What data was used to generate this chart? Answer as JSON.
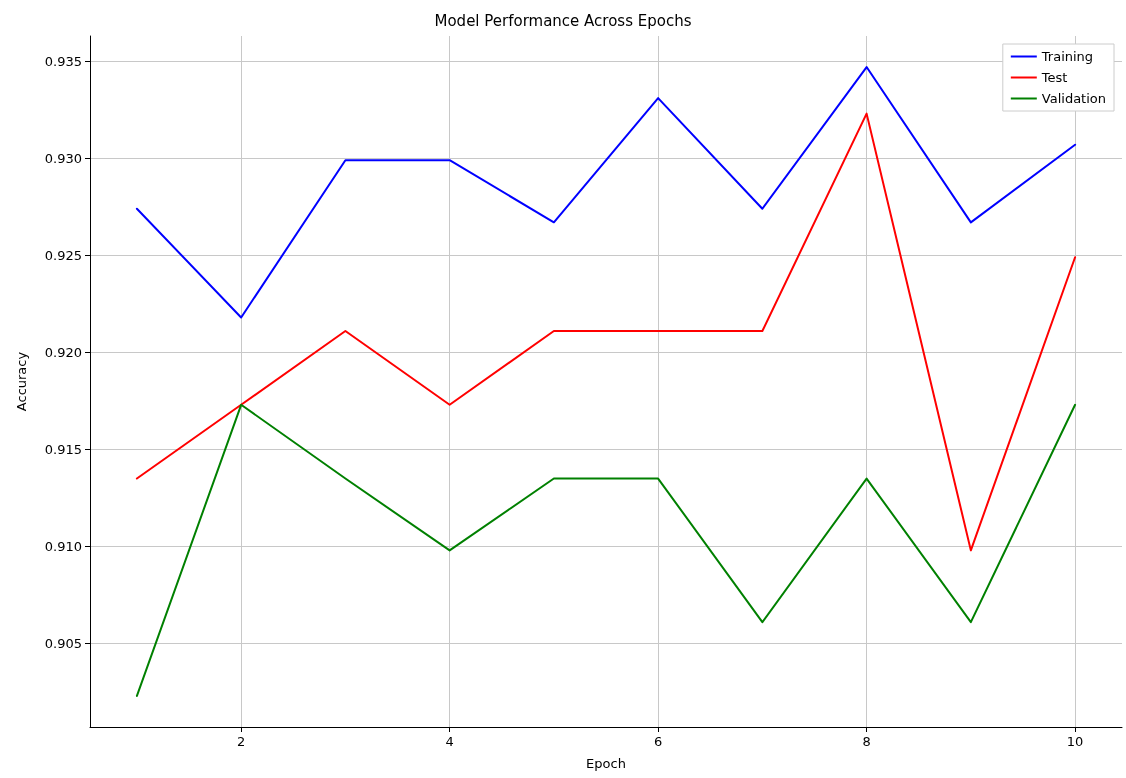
{
  "chart_data": {
    "type": "line",
    "title": "Model Performance Across Epochs",
    "xlabel": "Epoch",
    "ylabel": "Accuracy",
    "x": [
      1,
      2,
      3,
      4,
      5,
      6,
      7,
      8,
      9,
      10
    ],
    "series": [
      {
        "name": "Training",
        "color": "#0000ff",
        "values": [
          0.9274,
          0.9218,
          0.9299,
          0.9299,
          0.9267,
          0.9331,
          0.9274,
          0.9347,
          0.9267,
          0.9307
        ]
      },
      {
        "name": "Test",
        "color": "#ff0000",
        "values": [
          0.9135,
          0.9173,
          0.9211,
          0.9173,
          0.9211,
          0.9211,
          0.9211,
          0.9323,
          0.9098,
          0.9249
        ]
      },
      {
        "name": "Validation",
        "color": "#008000",
        "values": [
          0.9023,
          0.9173,
          0.9135,
          0.9098,
          0.9135,
          0.9135,
          0.9061,
          0.9135,
          0.9061,
          0.9173
        ]
      }
    ],
    "xlim": [
      0.55,
      10.45
    ],
    "xticks": [
      2,
      4,
      6,
      8,
      10
    ],
    "ylim": [
      0.9007,
      0.9363
    ],
    "yticks": [
      0.905,
      {
        "value": 0.91,
        "label": "0.910"
      },
      0.915,
      {
        "value": 0.92,
        "label": "0.920"
      },
      0.925,
      {
        "value": 0.93,
        "label": "0.930"
      },
      0.935
    ],
    "grid": true,
    "legend": "top right",
    "marker": "none",
    "line_style": "solid"
  }
}
